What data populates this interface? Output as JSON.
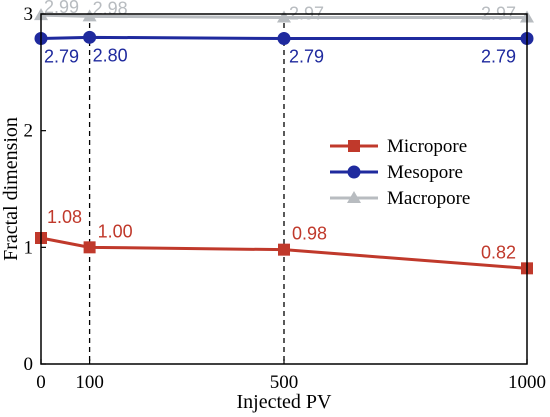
{
  "chart_data": {
    "type": "line",
    "xlabel": "Injected PV",
    "ylabel": "Fractal dimension",
    "x": [
      0,
      100,
      500,
      1000
    ],
    "x_tick_labels": [
      "0",
      "100",
      "500",
      "1000"
    ],
    "y_tick_labels": [
      "0",
      "1",
      "2",
      "3"
    ],
    "ylim": [
      0,
      3
    ],
    "xlim": [
      0,
      1000
    ],
    "grid": false,
    "vertical_reference_lines": [
      100,
      500
    ],
    "legend_position": "center-right",
    "series": [
      {
        "name": "Micropore",
        "values": [
          1.08,
          1.0,
          0.98,
          0.82
        ],
        "labels": [
          "1.08",
          "1.00",
          "0.98",
          "0.82"
        ],
        "color": "#c0392b",
        "marker": "square"
      },
      {
        "name": "Mesopore",
        "values": [
          2.79,
          2.8,
          2.79,
          2.79
        ],
        "labels": [
          "2.79",
          "2.80",
          "2.79",
          "2.79"
        ],
        "color": "#1f2a9e",
        "marker": "circle"
      },
      {
        "name": "Macropore",
        "values": [
          2.99,
          2.98,
          2.97,
          2.97
        ],
        "labels": [
          "2.99",
          "2.98",
          "2.97",
          "2.97"
        ],
        "color": "#b8bcc0",
        "marker": "triangle"
      }
    ]
  }
}
